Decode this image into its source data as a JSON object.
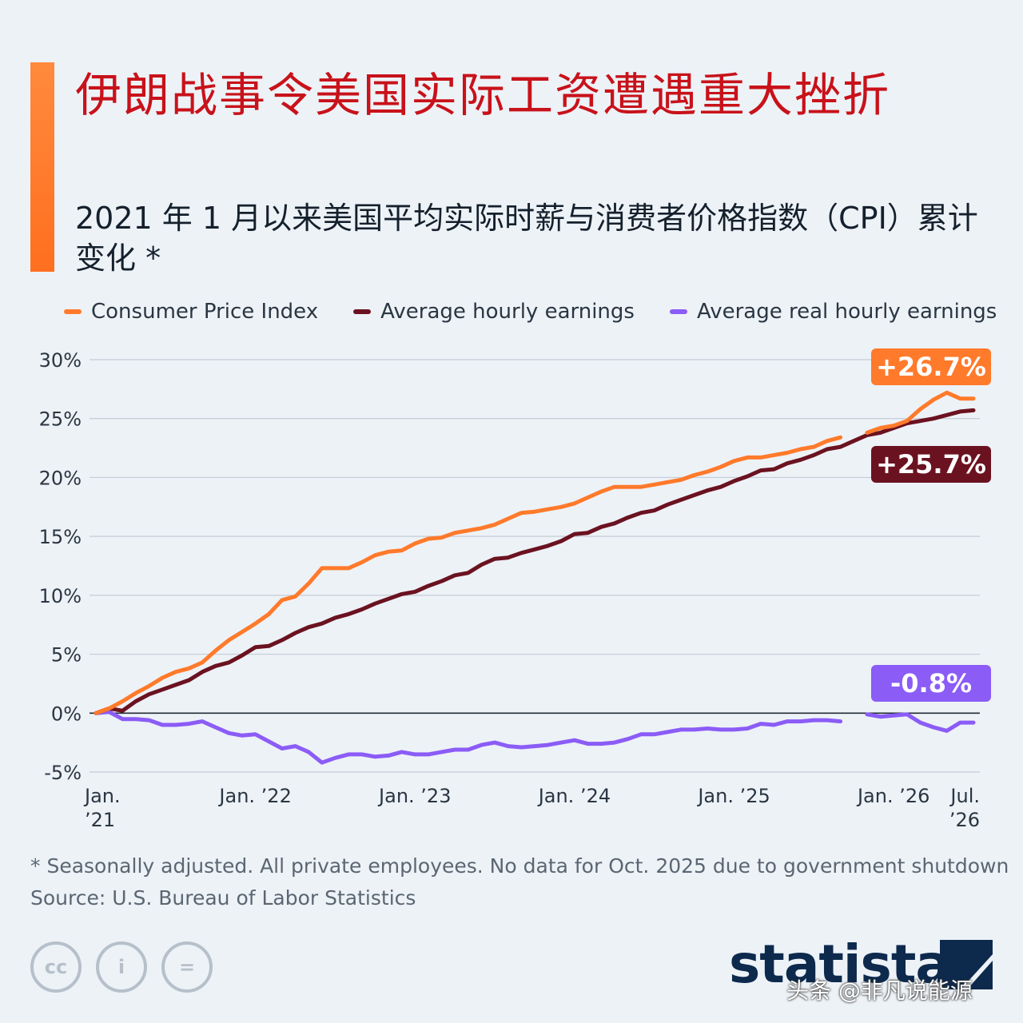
{
  "header": {
    "title": "伊朗战事令美国实际工资遭遇重大挫折",
    "subtitle": "2021 年 1 月以来美国平均实际时薪与消费者价格指数（CPI）累计变化 *"
  },
  "chart_data": {
    "type": "line",
    "legend_position": "top",
    "grid": true,
    "ylim": [
      -5,
      30
    ],
    "y_ticks": [
      {
        "value": 30,
        "label": "30%"
      },
      {
        "value": 25,
        "label": "25%"
      },
      {
        "value": 20,
        "label": "20%"
      },
      {
        "value": 15,
        "label": "15%"
      },
      {
        "value": 10,
        "label": "10%"
      },
      {
        "value": 5,
        "label": "5%"
      },
      {
        "value": 0,
        "label": "0%"
      },
      {
        "value": -5,
        "label": "-5%"
      }
    ],
    "x_ticks": [
      {
        "date": "2021-01",
        "line1": "Jan.",
        "line2": "’21"
      },
      {
        "date": "2022-01",
        "line1": "Jan. ’22",
        "line2": ""
      },
      {
        "date": "2023-01",
        "line1": "Jan. ’23",
        "line2": ""
      },
      {
        "date": "2024-01",
        "line1": "Jan. ’24",
        "line2": ""
      },
      {
        "date": "2025-01",
        "line1": "Jan. ’25",
        "line2": ""
      },
      {
        "date": "2026-01",
        "line1": "Jan. ’26",
        "line2": ""
      },
      {
        "date": "2026-07",
        "line1": "Jul.",
        "line2": "’26"
      }
    ],
    "series": [
      {
        "name": "Consumer Price Index",
        "color": "#ff7a2b",
        "end_label": "+26.7%",
        "points": [
          [
            "2021-01",
            0.0
          ],
          [
            "2021-02",
            0.4
          ],
          [
            "2021-03",
            1.0
          ],
          [
            "2021-04",
            1.7
          ],
          [
            "2021-05",
            2.3
          ],
          [
            "2021-06",
            3.0
          ],
          [
            "2021-07",
            3.5
          ],
          [
            "2021-08",
            3.8
          ],
          [
            "2021-09",
            4.3
          ],
          [
            "2021-10",
            5.3
          ],
          [
            "2021-11",
            6.2
          ],
          [
            "2021-12",
            6.9
          ],
          [
            "2022-01",
            7.6
          ],
          [
            "2022-02",
            8.4
          ],
          [
            "2022-03",
            9.6
          ],
          [
            "2022-04",
            9.9
          ],
          [
            "2022-05",
            11.0
          ],
          [
            "2022-06",
            12.3
          ],
          [
            "2022-07",
            12.3
          ],
          [
            "2022-08",
            12.3
          ],
          [
            "2022-09",
            12.8
          ],
          [
            "2022-10",
            13.4
          ],
          [
            "2022-11",
            13.7
          ],
          [
            "2022-12",
            13.8
          ],
          [
            "2023-01",
            14.4
          ],
          [
            "2023-02",
            14.8
          ],
          [
            "2023-03",
            14.9
          ],
          [
            "2023-04",
            15.3
          ],
          [
            "2023-05",
            15.5
          ],
          [
            "2023-06",
            15.7
          ],
          [
            "2023-07",
            16.0
          ],
          [
            "2023-08",
            16.5
          ],
          [
            "2023-09",
            17.0
          ],
          [
            "2023-10",
            17.1
          ],
          [
            "2023-11",
            17.3
          ],
          [
            "2023-12",
            17.5
          ],
          [
            "2024-01",
            17.8
          ],
          [
            "2024-02",
            18.3
          ],
          [
            "2024-03",
            18.8
          ],
          [
            "2024-04",
            19.2
          ],
          [
            "2024-05",
            19.2
          ],
          [
            "2024-06",
            19.2
          ],
          [
            "2024-07",
            19.4
          ],
          [
            "2024-08",
            19.6
          ],
          [
            "2024-09",
            19.8
          ],
          [
            "2024-10",
            20.2
          ],
          [
            "2024-11",
            20.5
          ],
          [
            "2024-12",
            20.9
          ],
          [
            "2025-01",
            21.4
          ],
          [
            "2025-02",
            21.7
          ],
          [
            "2025-03",
            21.7
          ],
          [
            "2025-04",
            21.9
          ],
          [
            "2025-05",
            22.1
          ],
          [
            "2025-06",
            22.4
          ],
          [
            "2025-07",
            22.6
          ],
          [
            "2025-08",
            23.1
          ],
          [
            "2025-09",
            23.4
          ],
          [
            "2025-10",
            null
          ],
          [
            "2025-11",
            23.8
          ],
          [
            "2025-12",
            24.2
          ],
          [
            "2026-01",
            24.4
          ],
          [
            "2026-02",
            24.8
          ],
          [
            "2026-03",
            25.8
          ],
          [
            "2026-04",
            26.6
          ],
          [
            "2026-05",
            27.2
          ],
          [
            "2026-06",
            26.7
          ],
          [
            "2026-07",
            26.7
          ]
        ]
      },
      {
        "name": "Average hourly earnings",
        "color": "#6b1220",
        "end_label": "+25.7%",
        "points": [
          [
            "2021-01",
            0.0
          ],
          [
            "2021-02",
            0.4
          ],
          [
            "2021-03",
            0.2
          ],
          [
            "2021-04",
            1.0
          ],
          [
            "2021-05",
            1.6
          ],
          [
            "2021-06",
            2.0
          ],
          [
            "2021-07",
            2.4
          ],
          [
            "2021-08",
            2.8
          ],
          [
            "2021-09",
            3.5
          ],
          [
            "2021-10",
            4.0
          ],
          [
            "2021-11",
            4.3
          ],
          [
            "2021-12",
            4.9
          ],
          [
            "2022-01",
            5.6
          ],
          [
            "2022-02",
            5.7
          ],
          [
            "2022-03",
            6.2
          ],
          [
            "2022-04",
            6.8
          ],
          [
            "2022-05",
            7.3
          ],
          [
            "2022-06",
            7.6
          ],
          [
            "2022-07",
            8.1
          ],
          [
            "2022-08",
            8.4
          ],
          [
            "2022-09",
            8.8
          ],
          [
            "2022-10",
            9.3
          ],
          [
            "2022-11",
            9.7
          ],
          [
            "2022-12",
            10.1
          ],
          [
            "2023-01",
            10.3
          ],
          [
            "2023-02",
            10.8
          ],
          [
            "2023-03",
            11.2
          ],
          [
            "2023-04",
            11.7
          ],
          [
            "2023-05",
            11.9
          ],
          [
            "2023-06",
            12.6
          ],
          [
            "2023-07",
            13.1
          ],
          [
            "2023-08",
            13.2
          ],
          [
            "2023-09",
            13.6
          ],
          [
            "2023-10",
            13.9
          ],
          [
            "2023-11",
            14.2
          ],
          [
            "2023-12",
            14.6
          ],
          [
            "2024-01",
            15.2
          ],
          [
            "2024-02",
            15.3
          ],
          [
            "2024-03",
            15.8
          ],
          [
            "2024-04",
            16.1
          ],
          [
            "2024-05",
            16.6
          ],
          [
            "2024-06",
            17.0
          ],
          [
            "2024-07",
            17.2
          ],
          [
            "2024-08",
            17.7
          ],
          [
            "2024-09",
            18.1
          ],
          [
            "2024-10",
            18.5
          ],
          [
            "2024-11",
            18.9
          ],
          [
            "2024-12",
            19.2
          ],
          [
            "2025-01",
            19.7
          ],
          [
            "2025-02",
            20.1
          ],
          [
            "2025-03",
            20.6
          ],
          [
            "2025-04",
            20.7
          ],
          [
            "2025-05",
            21.2
          ],
          [
            "2025-06",
            21.5
          ],
          [
            "2025-07",
            21.9
          ],
          [
            "2025-08",
            22.4
          ],
          [
            "2025-09",
            22.6
          ],
          [
            "2025-10",
            23.1
          ],
          [
            "2025-11",
            23.6
          ],
          [
            "2025-12",
            23.8
          ],
          [
            "2026-01",
            24.2
          ],
          [
            "2026-02",
            24.6
          ],
          [
            "2026-03",
            24.8
          ],
          [
            "2026-04",
            25.0
          ],
          [
            "2026-05",
            25.3
          ],
          [
            "2026-06",
            25.6
          ],
          [
            "2026-07",
            25.7
          ]
        ]
      },
      {
        "name": "Average real hourly earnings",
        "color": "#8b5cf6",
        "end_label": "-0.8%",
        "points": [
          [
            "2021-01",
            0.0
          ],
          [
            "2021-02",
            0.1
          ],
          [
            "2021-03",
            -0.5
          ],
          [
            "2021-04",
            -0.5
          ],
          [
            "2021-05",
            -0.6
          ],
          [
            "2021-06",
            -1.0
          ],
          [
            "2021-07",
            -1.0
          ],
          [
            "2021-08",
            -0.9
          ],
          [
            "2021-09",
            -0.7
          ],
          [
            "2021-10",
            -1.2
          ],
          [
            "2021-11",
            -1.7
          ],
          [
            "2021-12",
            -1.9
          ],
          [
            "2022-01",
            -1.8
          ],
          [
            "2022-02",
            -2.4
          ],
          [
            "2022-03",
            -3.0
          ],
          [
            "2022-04",
            -2.8
          ],
          [
            "2022-05",
            -3.3
          ],
          [
            "2022-06",
            -4.2
          ],
          [
            "2022-07",
            -3.8
          ],
          [
            "2022-08",
            -3.5
          ],
          [
            "2022-09",
            -3.5
          ],
          [
            "2022-10",
            -3.7
          ],
          [
            "2022-11",
            -3.6
          ],
          [
            "2022-12",
            -3.3
          ],
          [
            "2023-01",
            -3.5
          ],
          [
            "2023-02",
            -3.5
          ],
          [
            "2023-03",
            -3.3
          ],
          [
            "2023-04",
            -3.1
          ],
          [
            "2023-05",
            -3.1
          ],
          [
            "2023-06",
            -2.7
          ],
          [
            "2023-07",
            -2.5
          ],
          [
            "2023-08",
            -2.8
          ],
          [
            "2023-09",
            -2.9
          ],
          [
            "2023-10",
            -2.8
          ],
          [
            "2023-11",
            -2.7
          ],
          [
            "2023-12",
            -2.5
          ],
          [
            "2024-01",
            -2.3
          ],
          [
            "2024-02",
            -2.6
          ],
          [
            "2024-03",
            -2.6
          ],
          [
            "2024-04",
            -2.5
          ],
          [
            "2024-05",
            -2.2
          ],
          [
            "2024-06",
            -1.8
          ],
          [
            "2024-07",
            -1.8
          ],
          [
            "2024-08",
            -1.6
          ],
          [
            "2024-09",
            -1.4
          ],
          [
            "2024-10",
            -1.4
          ],
          [
            "2024-11",
            -1.3
          ],
          [
            "2024-12",
            -1.4
          ],
          [
            "2025-01",
            -1.4
          ],
          [
            "2025-02",
            -1.3
          ],
          [
            "2025-03",
            -0.9
          ],
          [
            "2025-04",
            -1.0
          ],
          [
            "2025-05",
            -0.7
          ],
          [
            "2025-06",
            -0.7
          ],
          [
            "2025-07",
            -0.6
          ],
          [
            "2025-08",
            -0.6
          ],
          [
            "2025-09",
            -0.7
          ],
          [
            "2025-10",
            null
          ],
          [
            "2025-11",
            -0.1
          ],
          [
            "2025-12",
            -0.3
          ],
          [
            "2026-01",
            -0.2
          ],
          [
            "2026-02",
            -0.1
          ],
          [
            "2026-03",
            -0.8
          ],
          [
            "2026-04",
            -1.2
          ],
          [
            "2026-05",
            -1.5
          ],
          [
            "2026-06",
            -0.8
          ],
          [
            "2026-07",
            -0.8
          ]
        ]
      }
    ]
  },
  "footer": {
    "note": "* Seasonally adjusted. All private employees. No data for Oct. 2025 due to government shutdown",
    "source": "Source: U.S. Bureau of Labor Statistics",
    "license_icons": [
      "cc-icon",
      "attribution-icon",
      "no-derivatives-icon"
    ],
    "license_glyphs": [
      "cc",
      "i",
      "="
    ],
    "brand": "statista",
    "watermark": "头条 @非凡说能源"
  }
}
